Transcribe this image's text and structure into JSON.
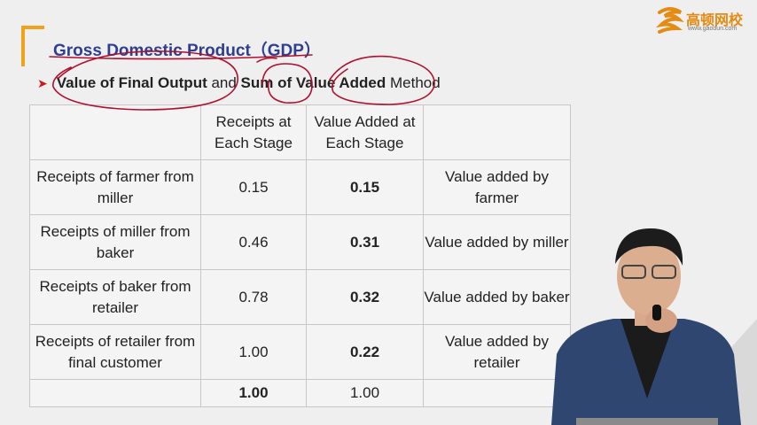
{
  "title": "Gross Domestic Product（GDP）",
  "logo": {
    "name": "高顿网校",
    "url": "www.gaodun.com"
  },
  "subtitle": {
    "part1": "Value of Final Output",
    "part2": " and ",
    "part3": "Sum of Value Added",
    "part4": " Method"
  },
  "table": {
    "headers": [
      "",
      "Receipts at Each Stage",
      "Value Added at Each Stage",
      ""
    ],
    "rows": [
      {
        "label": "Receipts of farmer from miller",
        "receipt": "0.15",
        "value_added": "0.15",
        "note": "Value added by farmer"
      },
      {
        "label": "Receipts of miller from baker",
        "receipt": "0.46",
        "value_added": "0.31",
        "note": "Value added by miller"
      },
      {
        "label": "Receipts of baker from retailer",
        "receipt": "0.78",
        "value_added": "0.32",
        "note": "Value added by baker"
      },
      {
        "label": "Receipts of retailer from final customer",
        "receipt": "1.00",
        "value_added": "0.22",
        "note": "Value added by retailer"
      }
    ],
    "total": {
      "label": "",
      "receipt": "1.00",
      "value_added": "1.00",
      "note": ""
    }
  },
  "colors": {
    "accent": "#f0a31a",
    "title": "#2f3f8f",
    "highlight": "#d01818",
    "annotation": "#b01030"
  }
}
